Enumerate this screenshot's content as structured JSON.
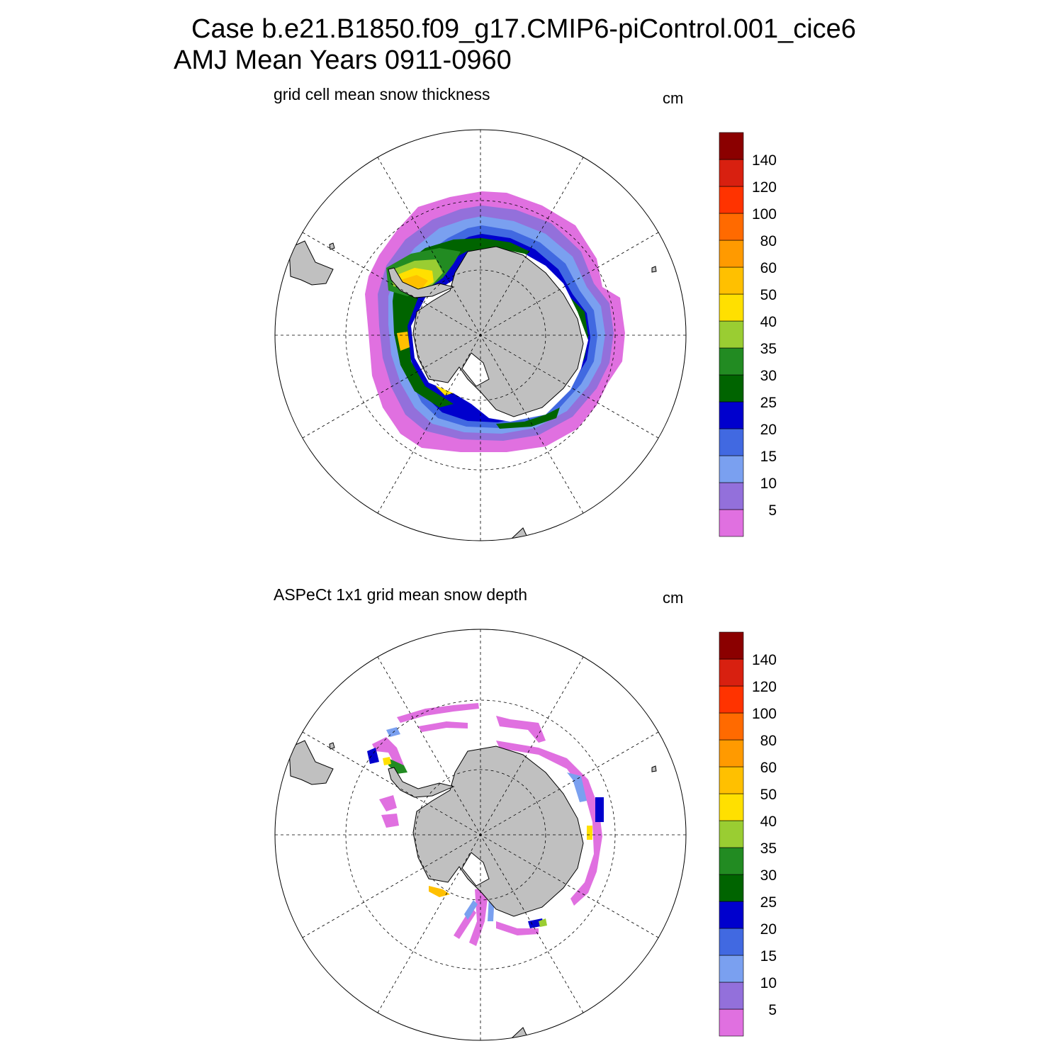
{
  "figure": {
    "title_line1": "Case b.e21.B1850.f09_g17.CMIP6-piControl.001_cice6",
    "title_line2": "AMJ Mean   Years 0911-0960"
  },
  "panels": [
    {
      "title": "grid cell mean snow thickness",
      "units": "cm"
    },
    {
      "title": "ASPeCt 1x1 grid mean snow depth",
      "units": "cm"
    }
  ],
  "colorbar": {
    "tick_labels": [
      "5",
      "10",
      "15",
      "20",
      "25",
      "30",
      "35",
      "40",
      "50",
      "60",
      "80",
      "100",
      "120",
      "140"
    ],
    "colors": [
      "#e070e0",
      "#9370db",
      "#7aa0f0",
      "#4169e1",
      "#0000cd",
      "#006400",
      "#228b22",
      "#9acd32",
      "#ffe000",
      "#ffc000",
      "#ff9a00",
      "#ff6a00",
      "#ff3300",
      "#d82010",
      "#8b0000"
    ]
  },
  "map": {
    "projection": "south polar stereographic",
    "land_color": "#c0c0c0",
    "gridlines": "dashed"
  }
}
